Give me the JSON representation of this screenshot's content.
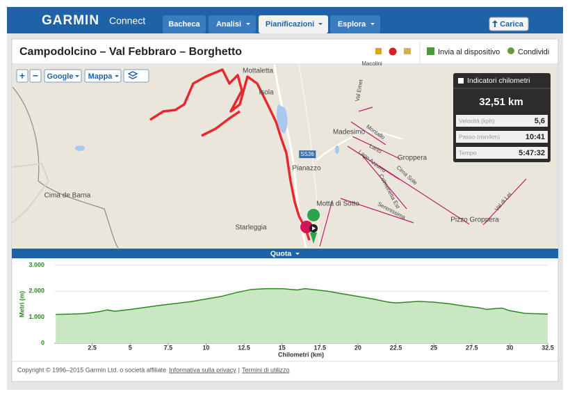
{
  "header": {
    "logo": "GARMIN",
    "logo_sub": "Connect",
    "tabs": [
      "Bacheca",
      "Analisi",
      "Pianificazioni",
      "Esplora"
    ],
    "upload": "Carica"
  },
  "course": {
    "title": "Campodolcino – Val Febbraro – Borghetto",
    "actions": [
      "Invia al dispositivo",
      "Condividi"
    ]
  },
  "map": {
    "controls": [
      "+",
      "−",
      "Google",
      "Mappa"
    ],
    "labels": [
      "Mottaletta",
      "Isola",
      "Madesimo",
      "Groppera",
      "Pianazzo",
      "Motta di Sotto",
      "Starleggia",
      "Cima de Barna",
      "Pizzo Groppera",
      "Montallo",
      "Larici",
      "Lago Azzurro",
      "Cima Sole",
      "Colmenetta Est",
      "Serenissima",
      "Val di Lei",
      "SS36",
      "Macolini",
      "Val Emet"
    ]
  },
  "stats": {
    "km_markers": "Indicatori chilometri",
    "distance": "32,51 km",
    "rows": [
      [
        "Velocità (kph)",
        "5,6"
      ],
      [
        "Passo (min/km)",
        "10:41"
      ],
      [
        "Tempo",
        "5:47:32"
      ]
    ]
  },
  "chart_bar": "Quota",
  "chart_data": {
    "type": "area",
    "x_label": "Chilometri (km)",
    "y_label": "Metri (m)",
    "color": "#2a8a1f",
    "fill": "#c9e7c3",
    "grid": true,
    "x": [
      0.1,
      1,
      2,
      3,
      3.5,
      4,
      5,
      6,
      7,
      8,
      9,
      10,
      11,
      12,
      13,
      14,
      15,
      16,
      16.5,
      17,
      18,
      19,
      20,
      21,
      22,
      22.5,
      23,
      24,
      25,
      26,
      27,
      28,
      28.5,
      29,
      29.5,
      30,
      31,
      32,
      32.5
    ],
    "values": [
      1110,
      1120,
      1140,
      1220,
      1280,
      1230,
      1300,
      1380,
      1460,
      1530,
      1600,
      1700,
      1800,
      1950,
      2070,
      2100,
      2100,
      2050,
      2100,
      2070,
      2000,
      1900,
      1800,
      1700,
      1580,
      1550,
      1570,
      1610,
      1580,
      1520,
      1430,
      1360,
      1300,
      1330,
      1350,
      1250,
      1150,
      1130,
      1120
    ],
    "xlim": [
      0,
      32.5
    ],
    "ylim": [
      0,
      3000
    ],
    "xticks": [
      2.5,
      5,
      7.5,
      10,
      12.5,
      15,
      17.5,
      20,
      22.5,
      25,
      27.5,
      30,
      32.5
    ],
    "yticks": [
      0,
      {
        "value": 1000,
        "label": "1.000"
      },
      {
        "value": 2000,
        "label": "2.000"
      },
      {
        "value": 3000,
        "label": "3.000"
      }
    ]
  },
  "footer": {
    "copyright": "Copyright © 1996–2015 Garmin Ltd. o società affiliate",
    "links": [
      "Informativa sulla privacy",
      "Termini di utilizzo"
    ],
    "separator": "|"
  }
}
